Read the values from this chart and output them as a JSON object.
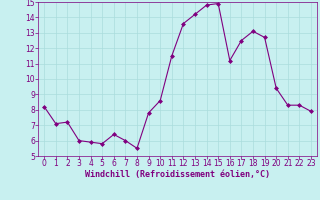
{
  "x": [
    0,
    1,
    2,
    3,
    4,
    5,
    6,
    7,
    8,
    9,
    10,
    11,
    12,
    13,
    14,
    15,
    16,
    17,
    18,
    19,
    20,
    21,
    22,
    23
  ],
  "y": [
    8.2,
    7.1,
    7.2,
    6.0,
    5.9,
    5.8,
    6.4,
    6.0,
    5.5,
    7.8,
    8.6,
    11.5,
    13.6,
    14.2,
    14.8,
    14.9,
    11.2,
    12.5,
    13.1,
    12.7,
    9.4,
    8.3,
    8.3,
    7.9
  ],
  "line_color": "#800080",
  "marker": "D",
  "marker_size": 2.0,
  "bg_color": "#c8f0f0",
  "grid_color": "#aadddd",
  "xlabel": "Windchill (Refroidissement éolien,°C)",
  "xlabel_color": "#800080",
  "tick_color": "#800080",
  "ylim": [
    5,
    15
  ],
  "xlim": [
    -0.5,
    23.5
  ],
  "yticks": [
    5,
    6,
    7,
    8,
    9,
    10,
    11,
    12,
    13,
    14,
    15
  ],
  "xticks": [
    0,
    1,
    2,
    3,
    4,
    5,
    6,
    7,
    8,
    9,
    10,
    11,
    12,
    13,
    14,
    15,
    16,
    17,
    18,
    19,
    20,
    21,
    22,
    23
  ],
  "tick_fontsize": 5.5,
  "xlabel_fontsize": 6.0
}
